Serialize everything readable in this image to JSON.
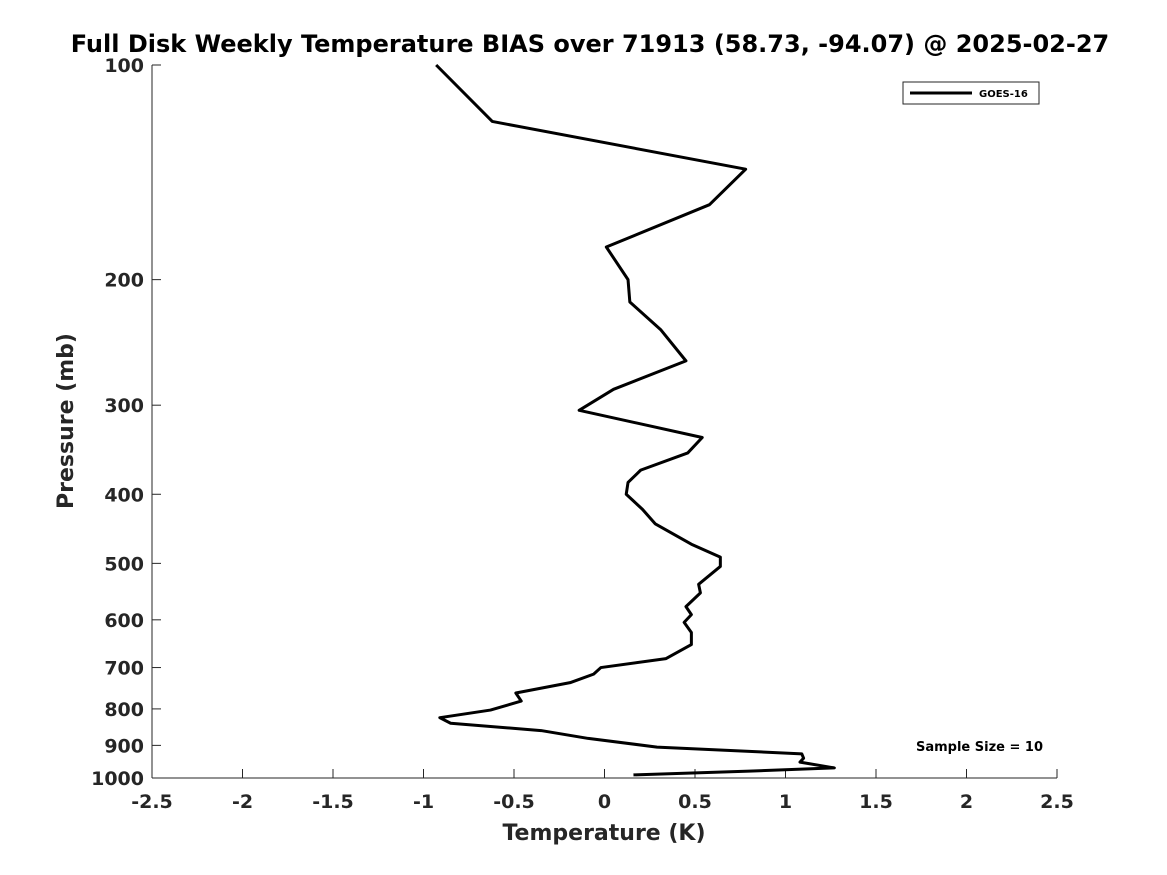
{
  "chart_data": {
    "type": "line",
    "title": "Full Disk Weekly Temperature BIAS over 71913 (58.73, -94.07) @ 2025-02-27",
    "xlabel": "Temperature (K)",
    "ylabel": "Pressure (mb)",
    "xlim": [
      -2.5,
      2.5
    ],
    "ylim": [
      100,
      1000
    ],
    "y_scale": "log",
    "y_reversed": true,
    "grid": false,
    "legend_position": "top-right",
    "x_ticks": [
      -2.5,
      -2,
      -1.5,
      -1,
      -0.5,
      0,
      0.5,
      1,
      1.5,
      2,
      2.5
    ],
    "x_tick_labels": [
      "-2.5",
      "-2",
      "-1.5",
      "-1",
      "-0.5",
      "0",
      "0.5",
      "1",
      "1.5",
      "2",
      "2.5"
    ],
    "y_ticks": [
      100,
      200,
      300,
      400,
      500,
      600,
      700,
      800,
      900,
      1000
    ],
    "y_tick_labels": [
      "100",
      "200",
      "300",
      "400",
      "500",
      "600",
      "700",
      "800",
      "900",
      "1000"
    ],
    "series": [
      {
        "name": "GOES-16",
        "color": "#000000",
        "points": [
          {
            "x": -0.93,
            "y": 100
          },
          {
            "x": -0.62,
            "y": 120
          },
          {
            "x": 0.78,
            "y": 140
          },
          {
            "x": 0.58,
            "y": 157
          },
          {
            "x": 0.01,
            "y": 180
          },
          {
            "x": 0.13,
            "y": 200
          },
          {
            "x": 0.14,
            "y": 215
          },
          {
            "x": 0.31,
            "y": 235
          },
          {
            "x": 0.45,
            "y": 260
          },
          {
            "x": 0.05,
            "y": 285
          },
          {
            "x": -0.14,
            "y": 305
          },
          {
            "x": 0.54,
            "y": 333
          },
          {
            "x": 0.46,
            "y": 350
          },
          {
            "x": 0.2,
            "y": 370
          },
          {
            "x": 0.13,
            "y": 385
          },
          {
            "x": 0.12,
            "y": 400
          },
          {
            "x": 0.21,
            "y": 420
          },
          {
            "x": 0.28,
            "y": 440
          },
          {
            "x": 0.48,
            "y": 470
          },
          {
            "x": 0.64,
            "y": 490
          },
          {
            "x": 0.64,
            "y": 505
          },
          {
            "x": 0.52,
            "y": 535
          },
          {
            "x": 0.53,
            "y": 550
          },
          {
            "x": 0.45,
            "y": 575
          },
          {
            "x": 0.48,
            "y": 590
          },
          {
            "x": 0.44,
            "y": 605
          },
          {
            "x": 0.48,
            "y": 625
          },
          {
            "x": 0.48,
            "y": 650
          },
          {
            "x": 0.34,
            "y": 680
          },
          {
            "x": -0.02,
            "y": 700
          },
          {
            "x": -0.06,
            "y": 715
          },
          {
            "x": -0.19,
            "y": 735
          },
          {
            "x": -0.49,
            "y": 760
          },
          {
            "x": -0.46,
            "y": 780
          },
          {
            "x": -0.63,
            "y": 803
          },
          {
            "x": -0.91,
            "y": 823
          },
          {
            "x": -0.85,
            "y": 838
          },
          {
            "x": -0.35,
            "y": 858
          },
          {
            "x": -0.09,
            "y": 880
          },
          {
            "x": 0.29,
            "y": 905
          },
          {
            "x": 1.09,
            "y": 925
          },
          {
            "x": 1.1,
            "y": 938
          },
          {
            "x": 1.08,
            "y": 950
          },
          {
            "x": 1.27,
            "y": 968
          },
          {
            "x": 0.8,
            "y": 978
          },
          {
            "x": 0.16,
            "y": 990
          }
        ]
      }
    ],
    "annotation": "Sample Size = 10"
  }
}
